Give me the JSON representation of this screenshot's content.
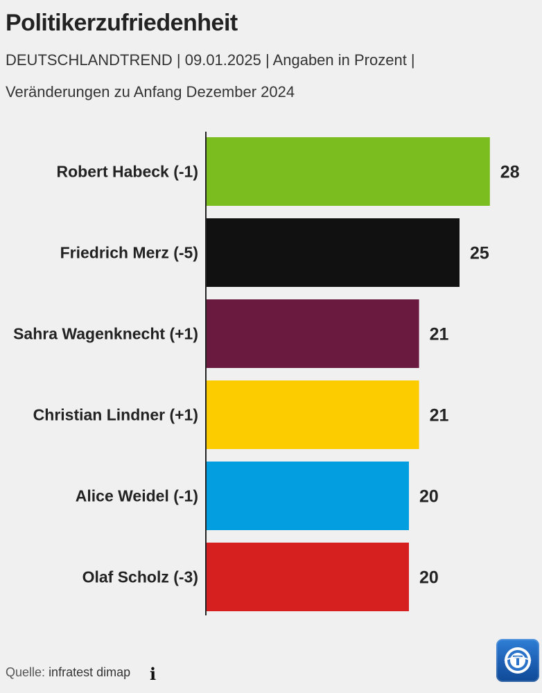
{
  "header": {
    "title": "Politikerzufriedenheit",
    "subtitle_line1": "DEUTSCHLANDTREND | 09.01.2025 | Angaben in Prozent |",
    "subtitle_line2": "Veränderungen zu Anfang Dezember 2024"
  },
  "footer": {
    "source_prefix": "Quelle:",
    "source_name": "infratest dimap",
    "info_icon": "info-icon",
    "logo_icon": "tagesschau-logo"
  },
  "chart_data": {
    "type": "bar",
    "orientation": "horizontal",
    "title": "Politikerzufriedenheit",
    "categories": [
      "Robert Habeck (-1)",
      "Friedrich Merz (-5)",
      "Sahra Wagenknecht (+1)",
      "Christian Lindner (+1)",
      "Alice Weidel (-1)",
      "Olaf Scholz (-3)"
    ],
    "values": [
      28,
      25,
      21,
      21,
      20,
      20
    ],
    "colors": [
      "#7bbd1f",
      "#111111",
      "#6a1a3f",
      "#fccc00",
      "#039ee0",
      "#d61f1f"
    ],
    "xlim": [
      0,
      33
    ],
    "grid": false,
    "legend": "none"
  }
}
